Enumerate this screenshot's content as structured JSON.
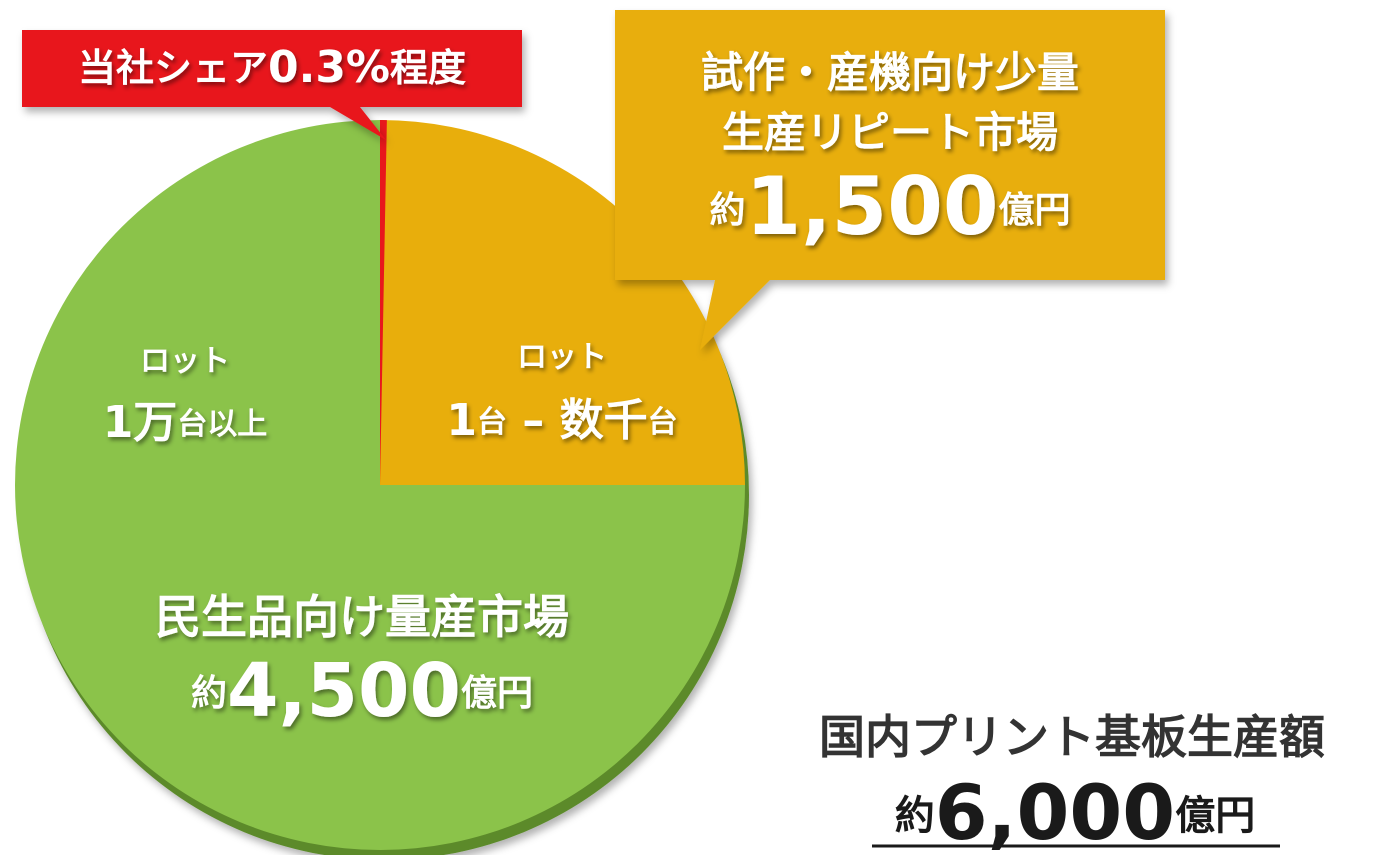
{
  "chart_data": {
    "type": "pie",
    "segments": [
      {
        "name_lines": [
          "試作・産機向け少量",
          "生産リピート市場"
        ],
        "prefix": "約",
        "value": 1500,
        "value_label": "1,500",
        "unit": "億円",
        "color": "#e8ae0c",
        "lot": [
          "ロット",
          "1",
          "台",
          " – 数千",
          "台"
        ]
      },
      {
        "name_lines": [
          "民生品向け量産市場"
        ],
        "prefix": "約",
        "value": 4500,
        "value_label": "4,500",
        "unit": "億円",
        "color": "#8bc34a",
        "lot": [
          "ロット",
          "1万",
          "台以上"
        ]
      }
    ],
    "share": {
      "prefix": "当社シェア",
      "value": 0.3,
      "value_label": "0.3%",
      "suffix": "程度",
      "color": "#e8171c"
    },
    "total": {
      "label": "国内プリント基板生産額",
      "prefix": "約",
      "value": 6000,
      "value_label": "6,000",
      "unit": "億円"
    }
  }
}
